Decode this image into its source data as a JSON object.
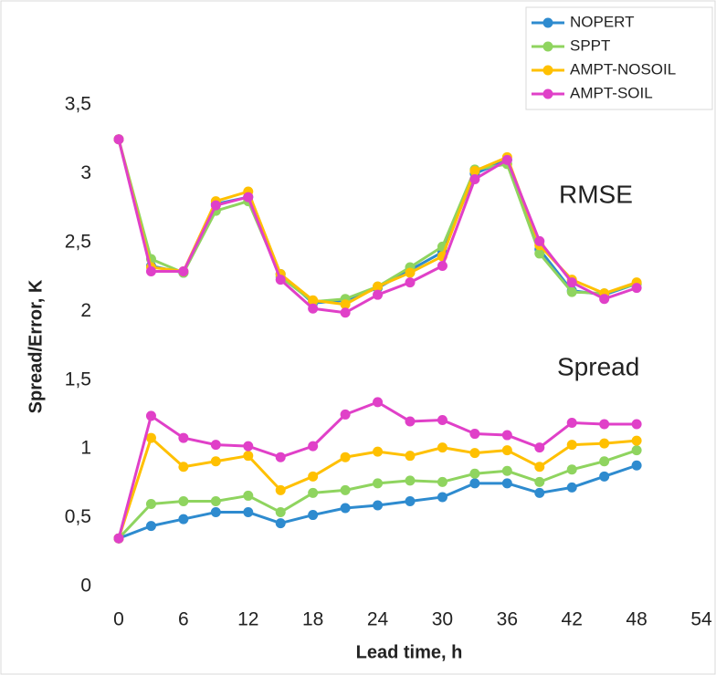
{
  "chart_data": {
    "type": "line",
    "y_label": "Spread/Error, K",
    "x_label": "Lead time, h",
    "annotations": [
      "RMSE",
      "Spread"
    ],
    "x": [
      0,
      3,
      6,
      9,
      12,
      15,
      18,
      21,
      24,
      27,
      30,
      33,
      36,
      39,
      42,
      45,
      48
    ],
    "series": [
      {
        "name": "NOPERT",
        "color": "#2e8bcf",
        "rmse": [
          3.25,
          2.33,
          2.28,
          2.78,
          2.83,
          2.27,
          2.06,
          2.08,
          2.17,
          2.3,
          2.43,
          3.0,
          3.1,
          2.45,
          2.15,
          2.12,
          2.2
        ],
        "spread": [
          0.35,
          0.44,
          0.49,
          0.54,
          0.54,
          0.46,
          0.52,
          0.57,
          0.59,
          0.62,
          0.65,
          0.75,
          0.75,
          0.68,
          0.72,
          0.8,
          0.88
        ]
      },
      {
        "name": "SPPT",
        "color": "#8fd45f",
        "rmse": [
          3.25,
          2.38,
          2.28,
          2.73,
          2.8,
          2.25,
          2.07,
          2.09,
          2.18,
          2.32,
          2.47,
          3.03,
          3.07,
          2.42,
          2.14,
          2.13,
          2.2
        ],
        "spread": [
          0.35,
          0.6,
          0.62,
          0.62,
          0.66,
          0.54,
          0.68,
          0.7,
          0.75,
          0.77,
          0.76,
          0.82,
          0.84,
          0.76,
          0.85,
          0.91,
          0.99
        ]
      },
      {
        "name": "AMPT-NOSOIL",
        "color": "#ffc000",
        "rmse": [
          3.25,
          2.32,
          2.29,
          2.8,
          2.87,
          2.27,
          2.08,
          2.05,
          2.18,
          2.28,
          2.4,
          3.02,
          3.12,
          2.48,
          2.23,
          2.13,
          2.21
        ],
        "spread": [
          0.35,
          1.08,
          0.87,
          0.91,
          0.95,
          0.7,
          0.8,
          0.94,
          0.98,
          0.95,
          1.01,
          0.97,
          0.99,
          0.87,
          1.03,
          1.04,
          1.06
        ]
      },
      {
        "name": "AMPT-SOIL",
        "color": "#e040c8",
        "rmse": [
          3.25,
          2.29,
          2.29,
          2.77,
          2.83,
          2.23,
          2.02,
          1.99,
          2.12,
          2.21,
          2.33,
          2.96,
          3.1,
          2.51,
          2.21,
          2.09,
          2.17
        ],
        "spread": [
          0.35,
          1.24,
          1.08,
          1.03,
          1.02,
          0.94,
          1.02,
          1.25,
          1.34,
          1.2,
          1.21,
          1.11,
          1.1,
          1.01,
          1.19,
          1.18,
          1.18
        ]
      }
    ],
    "xlim": [
      0,
      54
    ],
    "xticks": [
      0,
      6,
      12,
      18,
      24,
      30,
      36,
      42,
      48,
      54
    ],
    "ylim": [
      0,
      3.5
    ],
    "yticks": [
      0,
      {
        "value": 0.5,
        "label": "0,5"
      },
      1,
      {
        "value": 1.5,
        "label": "1,5"
      },
      2,
      {
        "value": 2.5,
        "label": "2,5"
      },
      3,
      {
        "value": 3.5,
        "label": "3,5"
      }
    ],
    "legend": "top-right"
  }
}
